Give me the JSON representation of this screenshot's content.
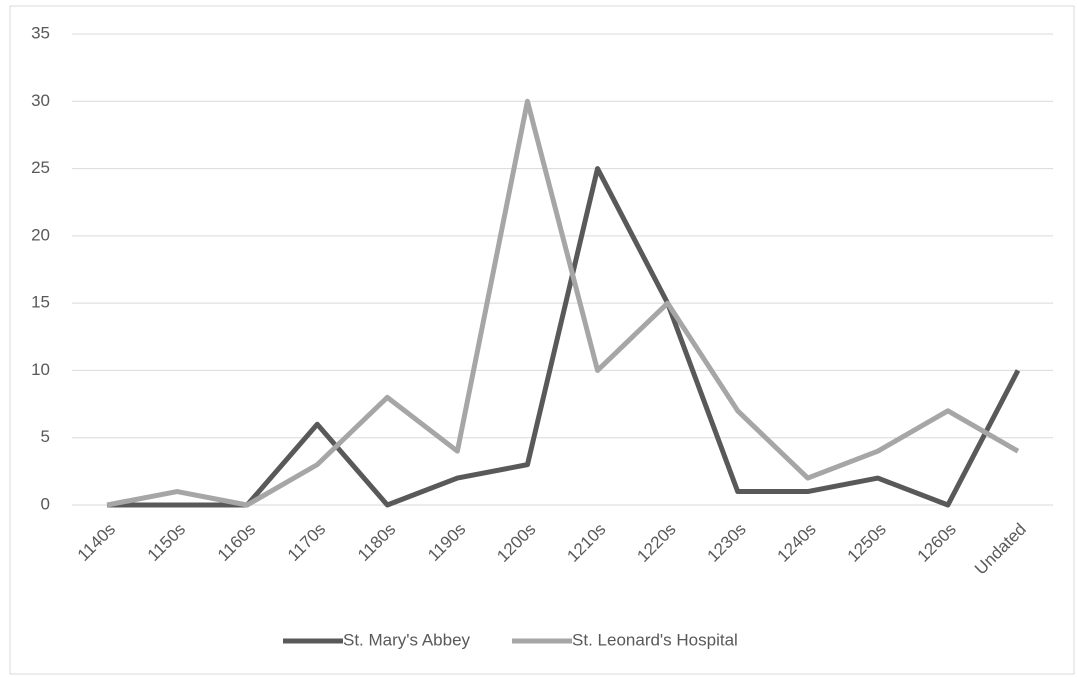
{
  "chart_data": {
    "type": "line",
    "categories": [
      "1140s",
      "1150s",
      "1160s",
      "1170s",
      "1180s",
      "1190s",
      "1200s",
      "1210s",
      "1220s",
      "1230s",
      "1240s",
      "1250s",
      "1260s",
      "Undated"
    ],
    "series": [
      {
        "name": "St. Mary's Abbey",
        "color": "#595959",
        "values": [
          0,
          0,
          0,
          6,
          0,
          2,
          3,
          25,
          15,
          1,
          1,
          2,
          0,
          10
        ]
      },
      {
        "name": "St. Leonard's Hospital",
        "color": "#a6a6a6",
        "values": [
          0,
          1,
          0,
          3,
          8,
          4,
          30,
          10,
          15,
          7,
          2,
          4,
          7,
          4
        ]
      }
    ],
    "ylim": [
      0,
      35
    ],
    "yticks": [
      0,
      5,
      10,
      15,
      20,
      25,
      30,
      35
    ],
    "grid": true,
    "legend": "bottom"
  }
}
